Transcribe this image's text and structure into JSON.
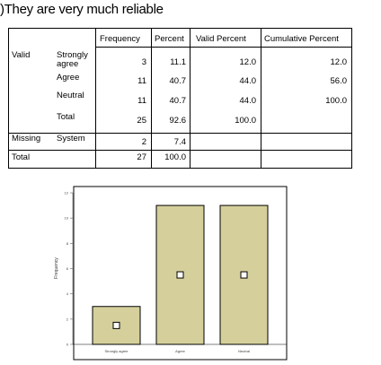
{
  "heading": ")They are very much reliable",
  "table": {
    "headers": [
      "Frequency",
      "Percent",
      "Valid Percent",
      "Cumulative Percent"
    ],
    "groups": {
      "valid": "Valid",
      "missing": "Missing",
      "total": "Total"
    },
    "rows": [
      {
        "label": "Strongly\nagree",
        "frequency": "3",
        "percent": "11.1",
        "valid_percent": "12.0",
        "cumulative_percent": "12.0"
      },
      {
        "label": "Agree",
        "frequency": "11",
        "percent": "40.7",
        "valid_percent": "44.0",
        "cumulative_percent": "56.0"
      },
      {
        "label": "Neutral",
        "frequency": "11",
        "percent": "40.7",
        "valid_percent": "44.0",
        "cumulative_percent": "100.0"
      },
      {
        "label": "Total",
        "frequency": "25",
        "percent": "92.6",
        "valid_percent": "100.0",
        "cumulative_percent": ""
      }
    ],
    "missing_row": {
      "label": "System",
      "frequency": "2",
      "percent": "7.4"
    },
    "total_row": {
      "frequency": "27",
      "percent": "100.0"
    }
  },
  "chart_data": {
    "type": "bar",
    "categories": [
      "Strongly agree",
      "Agree",
      "Neutral"
    ],
    "values": [
      3,
      11,
      11
    ],
    "ylabel": "Frequency",
    "xlabel": "",
    "ylim": [
      0,
      12
    ],
    "yticks": [
      0,
      2,
      4,
      6,
      8,
      10,
      12
    ],
    "grid": false,
    "legend": "none",
    "bar_color": "#d5d09b",
    "bar_stroke": "#000000"
  }
}
